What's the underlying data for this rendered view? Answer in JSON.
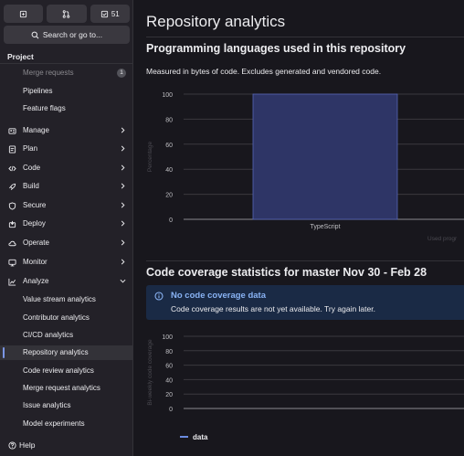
{
  "sidebar": {
    "top_buttons": [
      {
        "icon": "issue-new-icon",
        "label": ""
      },
      {
        "icon": "merge-request-icon",
        "label": ""
      },
      {
        "icon": "todo-check-icon",
        "label": "51"
      }
    ],
    "search_label": "Search or go to...",
    "project_label": "Project",
    "partial_item": {
      "label": "Merge requests",
      "badge": "1"
    },
    "items": [
      {
        "label": "Pipelines"
      },
      {
        "label": "Feature flags"
      },
      {
        "label": "Manage",
        "icon": "users-icon"
      },
      {
        "label": "Plan",
        "icon": "planning-icon"
      },
      {
        "label": "Code",
        "icon": "code-icon"
      },
      {
        "label": "Build",
        "icon": "rocket-icon"
      },
      {
        "label": "Secure",
        "icon": "shield-icon"
      },
      {
        "label": "Deploy",
        "icon": "deployments-icon"
      },
      {
        "label": "Operate",
        "icon": "cloud-gear-icon"
      },
      {
        "label": "Monitor",
        "icon": "monitor-icon"
      },
      {
        "label": "Analyze",
        "icon": "chart-icon"
      },
      {
        "label": "Value stream analytics"
      },
      {
        "label": "Contributor analytics"
      },
      {
        "label": "CI/CD analytics"
      },
      {
        "label": "Repository analytics"
      },
      {
        "label": "Code review analytics"
      },
      {
        "label": "Merge request analytics"
      },
      {
        "label": "Issue analytics"
      },
      {
        "label": "Model experiments"
      }
    ],
    "help_label": "Help"
  },
  "main": {
    "page_title": "Repository analytics",
    "languages_title": "Programming languages used in this repository",
    "languages_desc": "Measured in bytes of code. Excludes generated and vendored code.",
    "languages_trailing": "Used progr",
    "coverage_title": "Code coverage statistics for master Nov 30 - Feb 28",
    "alert_title": "No code coverage data",
    "alert_body": "Code coverage results are not yet available. Try again later.",
    "coverage_legend": "data"
  },
  "chart_data": [
    {
      "type": "bar",
      "categories": [
        "TypeScript"
      ],
      "values": [
        100
      ],
      "ylabel": "Percentage",
      "ylim": [
        0,
        100
      ],
      "yticks": [
        0,
        20,
        40,
        60,
        80,
        100
      ],
      "grid": true,
      "color": "#2e3566"
    },
    {
      "type": "line",
      "series": [
        {
          "name": "data",
          "values": []
        }
      ],
      "ylabel": "Bi-weekly code coverage",
      "ylim": [
        0,
        100
      ],
      "yticks": [
        0,
        20,
        40,
        60,
        80,
        100
      ],
      "grid": true,
      "legend": "bottom-left",
      "color": "#6b8be0"
    }
  ]
}
